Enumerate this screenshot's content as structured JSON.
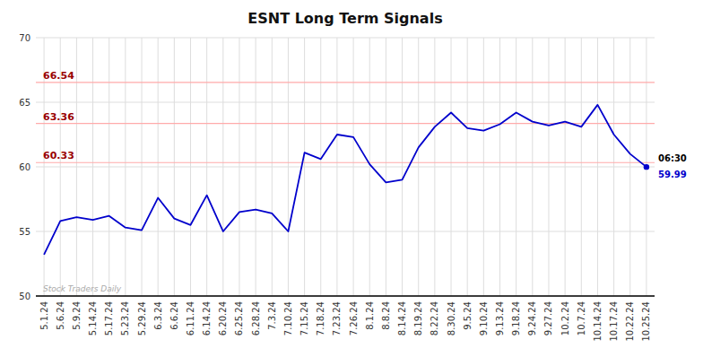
{
  "chart_data": {
    "type": "line",
    "title": "ESNT Long Term Signals",
    "categories": [
      "5.1.24",
      "5.6.24",
      "5.9.24",
      "5.14.24",
      "5.17.24",
      "5.23.24",
      "5.29.24",
      "6.3.24",
      "6.6.24",
      "6.11.24",
      "6.14.24",
      "6.20.24",
      "6.25.24",
      "6.28.24",
      "7.3.24",
      "7.10.24",
      "7.15.24",
      "7.18.24",
      "7.23.24",
      "7.26.24",
      "8.1.24",
      "8.8.24",
      "8.14.24",
      "8.19.24",
      "8.22.24",
      "8.30.24",
      "9.5.24",
      "9.10.24",
      "9.13.24",
      "9.18.24",
      "9.24.24",
      "9.27.24",
      "10.2.24",
      "10.7.24",
      "10.14.24",
      "10.17.24",
      "10.22.24",
      "10.25.24"
    ],
    "values": [
      53.2,
      55.8,
      56.1,
      55.9,
      56.2,
      55.3,
      55.1,
      57.6,
      56.0,
      55.5,
      57.8,
      55.0,
      56.5,
      56.7,
      56.4,
      55.0,
      61.1,
      60.6,
      62.5,
      62.3,
      60.2,
      58.8,
      59.0,
      61.5,
      63.1,
      64.2,
      63.0,
      62.8,
      63.3,
      64.2,
      63.5,
      63.2,
      63.5,
      63.1,
      64.8,
      62.5,
      61.0,
      59.99
    ],
    "color": "#0000cc",
    "ylim": [
      50,
      70
    ],
    "yticks": [
      50,
      55,
      60,
      65,
      70
    ],
    "grid": true,
    "hlines": [
      {
        "value": 60.33,
        "label": "60.33",
        "color": "#ffaaaa"
      },
      {
        "value": 63.36,
        "label": "63.36",
        "color": "#ffaaaa"
      },
      {
        "value": 66.54,
        "label": "66.54",
        "color": "#ffaaaa"
      }
    ],
    "hline_label_color": "#990000",
    "last_point": {
      "value": 59.99,
      "label": "59.99",
      "time": "06:30"
    },
    "watermark": "Stock Traders Daily"
  }
}
